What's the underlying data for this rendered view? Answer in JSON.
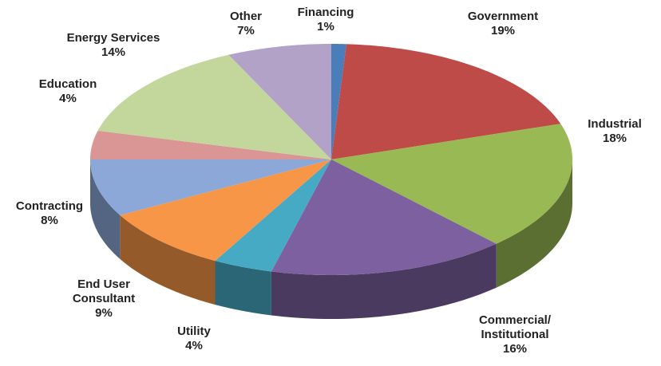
{
  "chart_data": {
    "type": "pie",
    "categories": [
      "Financing",
      "Government",
      "Industrial",
      "Commercial/\nInstitutional",
      "Utility",
      "End User\nConsultant",
      "Contracting",
      "Education",
      "Energy Services",
      "Other"
    ],
    "values": [
      1,
      19,
      18,
      16,
      4,
      9,
      8,
      4,
      14,
      7
    ],
    "value_labels": [
      "1%",
      "19%",
      "18%",
      "16%",
      "4%",
      "9%",
      "8%",
      "4%",
      "14%",
      "7%"
    ],
    "colors": [
      "#4a7ebb",
      "#be4b48",
      "#98b954",
      "#7d60a0",
      "#46aac4",
      "#f79646",
      "#8ca8d8",
      "#d99694",
      "#c3d69b",
      "#b3a2c7"
    ]
  }
}
